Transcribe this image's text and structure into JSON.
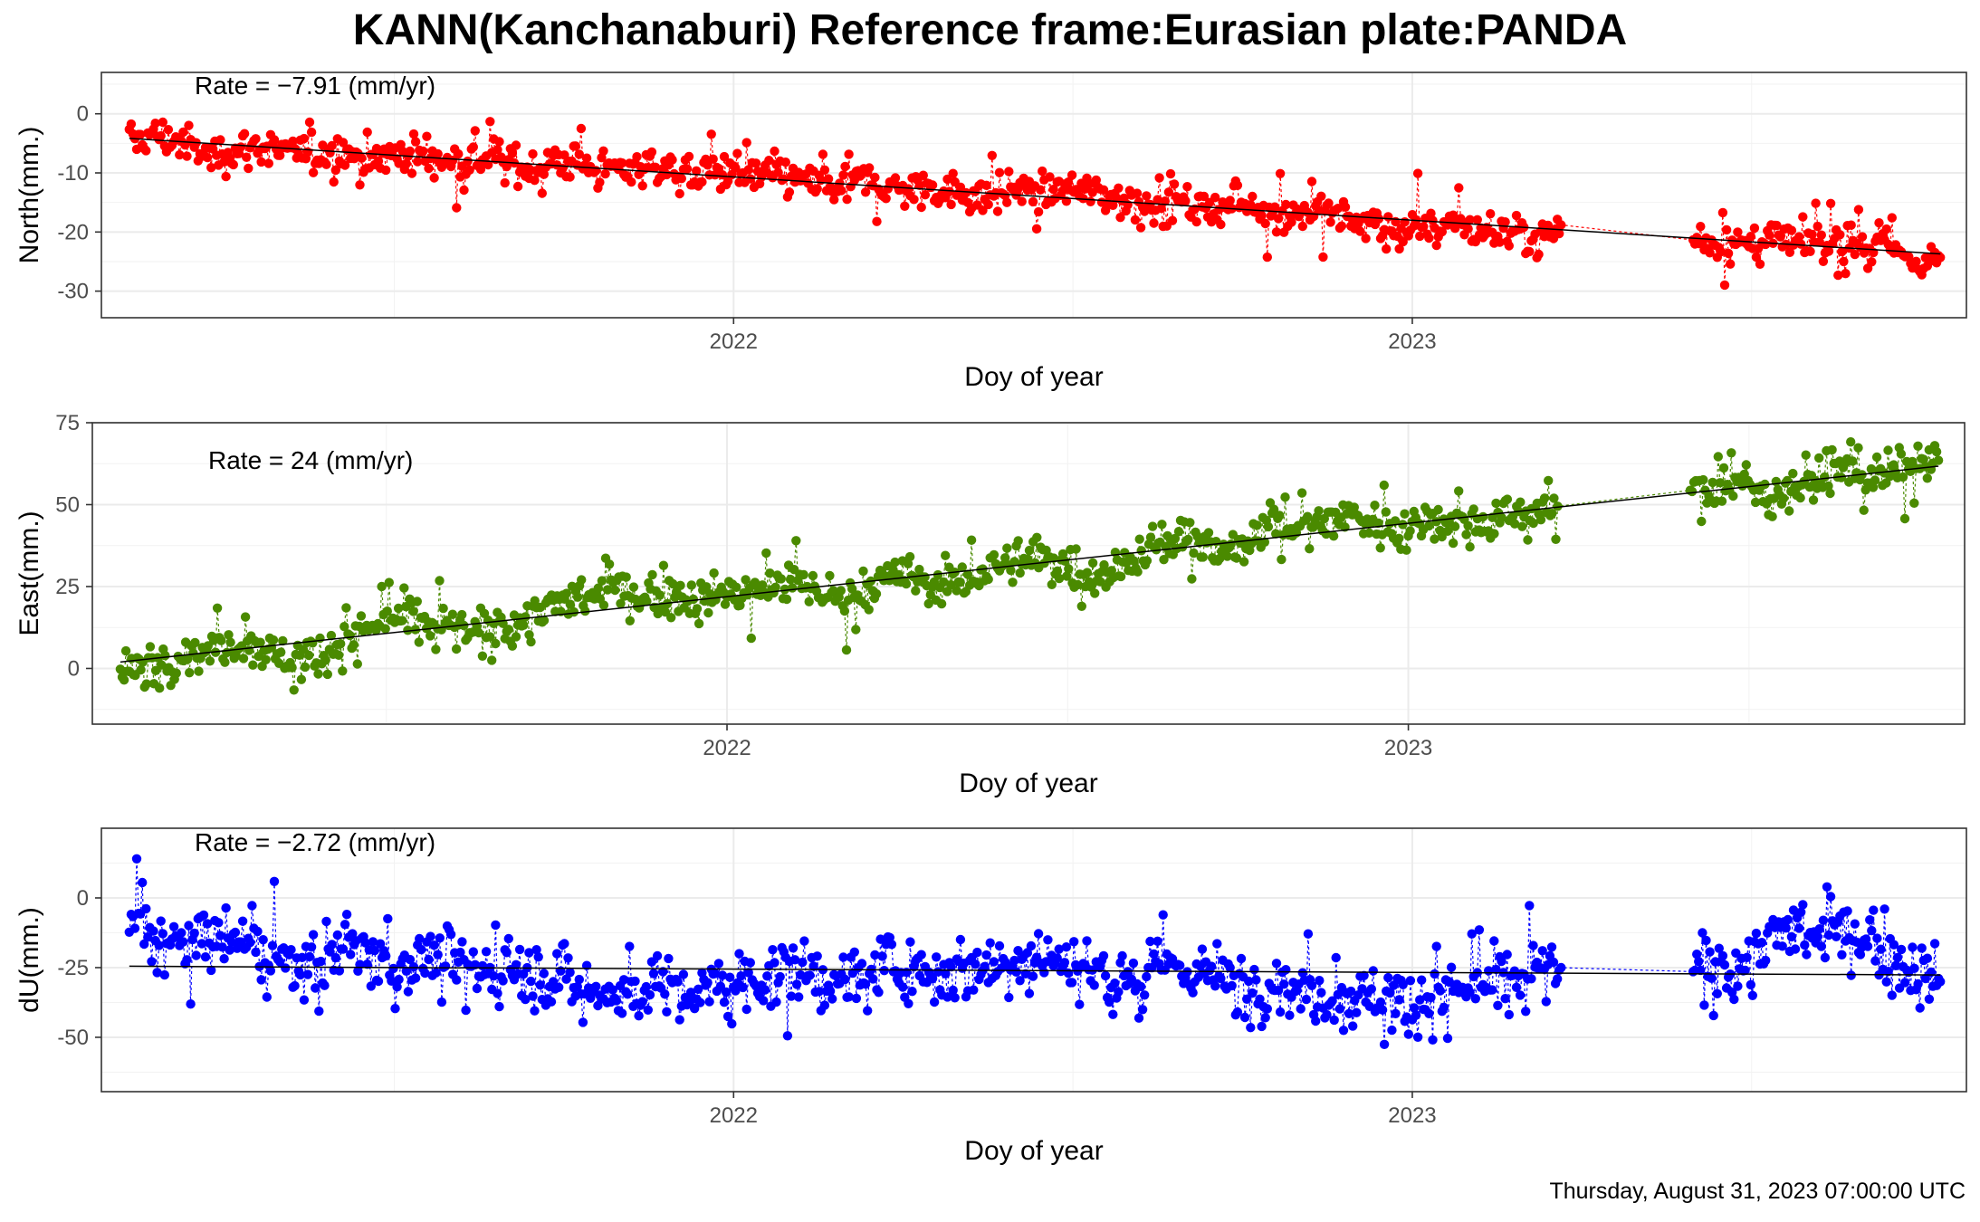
{
  "title": "KANN(Kanchanaburi) Reference frame:Eurasian plate:PANDA",
  "footer": "Thursday, August 31, 2023 07:00:00 UTC",
  "colors": {
    "north": "#ff0000",
    "east": "#4a8a00",
    "up": "#0000ff",
    "trend": "#000000"
  },
  "chart_data": [
    {
      "type": "line",
      "component": "north",
      "title": "",
      "xlabel": "Doy of year",
      "ylabel": "North(mm.)",
      "rate_label": "Rate = −7.91 (mm/yr)",
      "rate": -7.91,
      "x_tick_labels": [
        "2022",
        "2023"
      ],
      "x_ticks": [
        "2022-01-01",
        "2023-01-01"
      ],
      "xlim": [
        "2021-01-26",
        "2023-10-26"
      ],
      "y_ticks": [
        0,
        -10,
        -20,
        -30
      ],
      "ylim": [
        -34.5,
        7
      ],
      "grid": true,
      "series": [
        {
          "points": [
            [
              "2021-02-10",
              -4.8
            ],
            [
              "2021-02-24",
              -3.5
            ],
            [
              "2021-03-10",
              -4.8
            ],
            [
              "2021-03-24",
              -7.2
            ],
            [
              "2021-04-07",
              -6.2
            ],
            [
              "2021-04-21",
              -5.4
            ],
            [
              "2021-05-05",
              -6.8
            ],
            [
              "2021-05-19",
              -6.7
            ],
            [
              "2021-06-02",
              -6.0
            ],
            [
              "2021-06-16",
              -7.7
            ],
            [
              "2021-06-30",
              -7.0
            ],
            [
              "2021-07-14",
              -6.8
            ],
            [
              "2021-07-28",
              -7.9
            ],
            [
              "2021-08-11",
              -8.0
            ],
            [
              "2021-08-25",
              -7.1
            ],
            [
              "2021-09-08",
              -8.9
            ],
            [
              "2021-09-22",
              -8.7
            ],
            [
              "2021-10-06",
              -7.7
            ],
            [
              "2021-10-20",
              -9.5
            ],
            [
              "2021-11-03",
              -9.3
            ],
            [
              "2021-11-17",
              -8.5
            ],
            [
              "2021-12-01",
              -10.0
            ],
            [
              "2021-12-15",
              -10.0
            ],
            [
              "2021-12-29",
              -9.3
            ],
            [
              "2022-01-12",
              -10.8
            ],
            [
              "2022-01-26",
              -10.5
            ],
            [
              "2022-02-09",
              -11.4
            ],
            [
              "2022-02-23",
              -12.5
            ],
            [
              "2022-03-09",
              -11.0
            ],
            [
              "2022-03-23",
              -12.1
            ],
            [
              "2022-04-06",
              -13.2
            ],
            [
              "2022-04-20",
              -12.3
            ],
            [
              "2022-05-04",
              -13.4
            ],
            [
              "2022-05-18",
              -14.0
            ],
            [
              "2022-06-01",
              -12.6
            ],
            [
              "2022-06-15",
              -13.5
            ],
            [
              "2022-06-29",
              -12.8
            ],
            [
              "2022-07-13",
              -13.1
            ],
            [
              "2022-07-27",
              -14.3
            ],
            [
              "2022-08-10",
              -15.2
            ],
            [
              "2022-08-24",
              -14.0
            ],
            [
              "2022-09-07",
              -15.8
            ],
            [
              "2022-09-21",
              -15.7
            ],
            [
              "2022-10-05",
              -15.0
            ],
            [
              "2022-10-19",
              -16.7
            ],
            [
              "2022-11-02",
              -16.3
            ],
            [
              "2022-11-16",
              -17.2
            ],
            [
              "2022-11-30",
              -18.1
            ],
            [
              "2022-12-14",
              -18.3
            ],
            [
              "2022-12-28",
              -19.8
            ],
            [
              "2023-01-11",
              -19.0
            ],
            [
              "2023-01-25",
              -18.4
            ],
            [
              "2023-02-08",
              -20.2
            ],
            [
              "2023-02-22",
              -19.6
            ],
            [
              "2023-03-08",
              -21.0
            ],
            [
              "2023-03-22",
              -18.8
            ],
            [
              "2023-06-01",
              -21.2
            ],
            [
              "2023-06-15",
              -21.8
            ],
            [
              "2023-06-29",
              -22.3
            ],
            [
              "2023-07-13",
              -21.4
            ],
            [
              "2023-07-27",
              -22.0
            ],
            [
              "2023-08-10",
              -21.6
            ],
            [
              "2023-08-24",
              -22.6
            ],
            [
              "2023-09-07",
              -21.4
            ],
            [
              "2023-09-21",
              -24.0
            ],
            [
              "2023-10-05",
              -25.1
            ],
            [
              "2023-10-12",
              -24.3
            ]
          ]
        }
      ]
    },
    {
      "type": "line",
      "component": "east",
      "title": "",
      "xlabel": "Doy of year",
      "ylabel": "East(mm.)",
      "rate_label": "Rate = 24 (mm/yr)",
      "rate": 24,
      "x_tick_labels": [
        "2022",
        "2023"
      ],
      "x_ticks": [
        "2022-01-01",
        "2023-01-01"
      ],
      "xlim": [
        "2021-01-26",
        "2023-10-26"
      ],
      "y_ticks": [
        0,
        25,
        50,
        75
      ],
      "ylim": [
        -17,
        75
      ],
      "grid": true,
      "series": [
        {
          "points": [
            [
              "2021-02-10",
              -2.0
            ],
            [
              "2021-02-24",
              1.0
            ],
            [
              "2021-03-10",
              3.5
            ],
            [
              "2021-03-24",
              5.0
            ],
            [
              "2021-04-07",
              7.5
            ],
            [
              "2021-04-21",
              8.0
            ],
            [
              "2021-05-05",
              4.0
            ],
            [
              "2021-05-19",
              3.0
            ],
            [
              "2021-06-02",
              6.0
            ],
            [
              "2021-06-16",
              10.5
            ],
            [
              "2021-06-30",
              14.0
            ],
            [
              "2021-07-14",
              16.0
            ],
            [
              "2021-07-28",
              13.0
            ],
            [
              "2021-08-11",
              12.0
            ],
            [
              "2021-08-25",
              10.0
            ],
            [
              "2021-09-08",
              13.5
            ],
            [
              "2021-09-22",
              18.0
            ],
            [
              "2021-10-06",
              20.0
            ],
            [
              "2021-10-20",
              22.0
            ],
            [
              "2021-11-03",
              24.0
            ],
            [
              "2021-11-17",
              21.5
            ],
            [
              "2021-12-01",
              23.5
            ],
            [
              "2021-12-15",
              20.5
            ],
            [
              "2021-12-29",
              22.5
            ],
            [
              "2022-01-12",
              23.0
            ],
            [
              "2022-01-26",
              25.0
            ],
            [
              "2022-02-09",
              26.5
            ],
            [
              "2022-02-23",
              22.5
            ],
            [
              "2022-03-09",
              20.5
            ],
            [
              "2022-03-23",
              26.0
            ],
            [
              "2022-04-06",
              28.0
            ],
            [
              "2022-04-20",
              27.0
            ],
            [
              "2022-05-04",
              25.5
            ],
            [
              "2022-05-18",
              29.5
            ],
            [
              "2022-06-01",
              32.0
            ],
            [
              "2022-06-15",
              33.5
            ],
            [
              "2022-06-29",
              32.0
            ],
            [
              "2022-07-13",
              29.0
            ],
            [
              "2022-07-27",
              30.0
            ],
            [
              "2022-08-10",
              35.0
            ],
            [
              "2022-08-24",
              37.5
            ],
            [
              "2022-09-07",
              40.0
            ],
            [
              "2022-09-21",
              34.0
            ],
            [
              "2022-10-05",
              38.5
            ],
            [
              "2022-10-19",
              46.0
            ],
            [
              "2022-11-02",
              43.0
            ],
            [
              "2022-11-16",
              44.5
            ],
            [
              "2022-11-30",
              47.5
            ],
            [
              "2022-12-14",
              44.0
            ],
            [
              "2022-12-28",
              42.0
            ],
            [
              "2023-01-11",
              46.0
            ],
            [
              "2023-01-25",
              45.0
            ],
            [
              "2023-02-08",
              44.0
            ],
            [
              "2023-02-22",
              46.5
            ],
            [
              "2023-03-08",
              48.5
            ],
            [
              "2023-03-22",
              49.5
            ],
            [
              "2023-06-01",
              54.0
            ],
            [
              "2023-06-15",
              55.0
            ],
            [
              "2023-06-29",
              56.5
            ],
            [
              "2023-07-13",
              53.0
            ],
            [
              "2023-07-27",
              55.5
            ],
            [
              "2023-08-10",
              58.5
            ],
            [
              "2023-08-24",
              61.5
            ],
            [
              "2023-09-07",
              58.0
            ],
            [
              "2023-09-21",
              60.5
            ],
            [
              "2023-10-05",
              61.0
            ],
            [
              "2023-10-12",
              63.5
            ]
          ]
        }
      ]
    },
    {
      "type": "line",
      "component": "up",
      "title": "",
      "xlabel": "Doy of year",
      "ylabel": "dU(mm.)",
      "rate_label": "Rate = −2.72 (mm/yr)",
      "rate": -2.72,
      "x_tick_labels": [
        "2022",
        "2023"
      ],
      "x_ticks": [
        "2022-01-01",
        "2023-01-01"
      ],
      "xlim": [
        "2021-01-26",
        "2023-10-26"
      ],
      "y_ticks": [
        0,
        -25,
        -50
      ],
      "ylim": [
        -69.5,
        25
      ],
      "grid": true,
      "series": [
        {
          "points": [
            [
              "2021-02-10",
              -8.0
            ],
            [
              "2021-02-24",
              -14.0
            ],
            [
              "2021-03-10",
              -18.0
            ],
            [
              "2021-03-24",
              -14.0
            ],
            [
              "2021-04-07",
              -16.0
            ],
            [
              "2021-04-21",
              -20.0
            ],
            [
              "2021-05-05",
              -22.0
            ],
            [
              "2021-05-19",
              -24.0
            ],
            [
              "2021-06-02",
              -20.0
            ],
            [
              "2021-06-16",
              -18.0
            ],
            [
              "2021-06-30",
              -26.0
            ],
            [
              "2021-07-14",
              -22.0
            ],
            [
              "2021-07-28",
              -20.0
            ],
            [
              "2021-08-11",
              -27.0
            ],
            [
              "2021-08-25",
              -25.0
            ],
            [
              "2021-09-08",
              -26.0
            ],
            [
              "2021-09-22",
              -28.0
            ],
            [
              "2021-10-06",
              -30.0
            ],
            [
              "2021-10-20",
              -34.0
            ],
            [
              "2021-11-03",
              -36.0
            ],
            [
              "2021-11-17",
              -31.0
            ],
            [
              "2021-12-01",
              -32.0
            ],
            [
              "2021-12-15",
              -35.0
            ],
            [
              "2021-12-29",
              -30.0
            ],
            [
              "2022-01-12",
              -29.0
            ],
            [
              "2022-01-26",
              -28.0
            ],
            [
              "2022-02-09",
              -27.0
            ],
            [
              "2022-02-23",
              -30.0
            ],
            [
              "2022-03-09",
              -29.0
            ],
            [
              "2022-03-23",
              -25.0
            ],
            [
              "2022-04-06",
              -24.0
            ],
            [
              "2022-04-20",
              -27.0
            ],
            [
              "2022-05-04",
              -26.0
            ],
            [
              "2022-05-18",
              -24.0
            ],
            [
              "2022-06-01",
              -20.0
            ],
            [
              "2022-06-15",
              -21.0
            ],
            [
              "2022-06-29",
              -23.0
            ],
            [
              "2022-07-13",
              -26.0
            ],
            [
              "2022-07-27",
              -27.0
            ],
            [
              "2022-08-10",
              -28.0
            ],
            [
              "2022-08-24",
              -24.0
            ],
            [
              "2022-09-07",
              -26.0
            ],
            [
              "2022-09-21",
              -29.0
            ],
            [
              "2022-10-05",
              -32.0
            ],
            [
              "2022-10-19",
              -30.0
            ],
            [
              "2022-11-02",
              -33.0
            ],
            [
              "2022-11-16",
              -35.0
            ],
            [
              "2022-11-30",
              -36.0
            ],
            [
              "2022-12-14",
              -34.0
            ],
            [
              "2022-12-28",
              -38.0
            ],
            [
              "2023-01-11",
              -35.0
            ],
            [
              "2023-01-25",
              -33.0
            ],
            [
              "2023-02-08",
              -32.0
            ],
            [
              "2023-02-22",
              -30.0
            ],
            [
              "2023-03-08",
              -27.0
            ],
            [
              "2023-03-22",
              -25.0
            ],
            [
              "2023-06-01",
              -26.0
            ],
            [
              "2023-06-15",
              -28.0
            ],
            [
              "2023-06-29",
              -22.0
            ],
            [
              "2023-07-13",
              -14.0
            ],
            [
              "2023-07-27",
              -12.0
            ],
            [
              "2023-08-10",
              -15.0
            ],
            [
              "2023-08-24",
              -13.0
            ],
            [
              "2023-09-07",
              -16.0
            ],
            [
              "2023-09-21",
              -24.0
            ],
            [
              "2023-10-05",
              -28.0
            ],
            [
              "2023-10-12",
              -30.0
            ]
          ]
        }
      ]
    }
  ]
}
